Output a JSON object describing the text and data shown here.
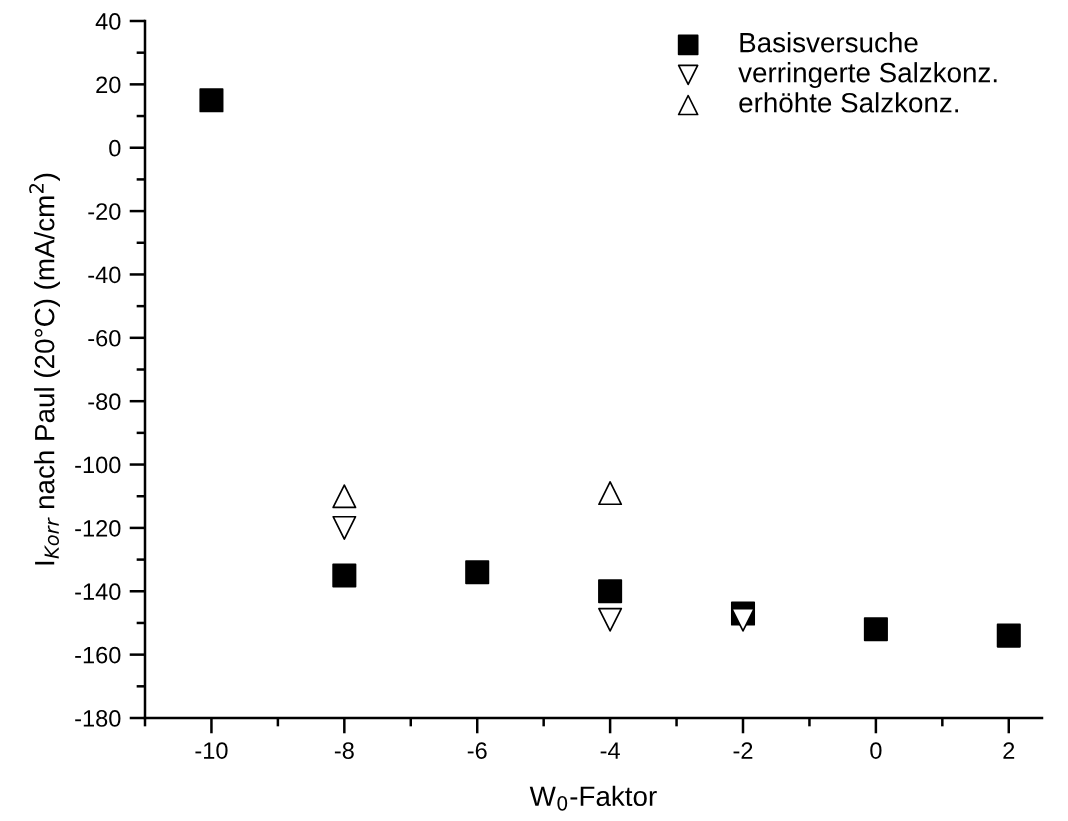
{
  "chart_data": {
    "type": "scatter",
    "xlabel": "W$_{0}$-Faktor",
    "ylabel": "I$_{Korr}$ nach Paul (20°C) (mA/cm$^{2}$)",
    "xlim": [
      -11,
      2.5
    ],
    "xticks": [
      -10,
      -8,
      -6,
      -4,
      -2,
      0,
      2
    ],
    "ylim": [
      -180,
      40
    ],
    "yticks": [
      -180,
      -160,
      -140,
      -120,
      -100,
      -80,
      -60,
      -40,
      -20,
      0,
      20,
      40
    ],
    "grid": false,
    "legend": "top right",
    "series": [
      {
        "name": "Basisversuche",
        "color": "#000000",
        "marker": "square",
        "x": [
          -10,
          -8,
          -6,
          -4,
          -2,
          0,
          2
        ],
        "values": [
          15,
          -135,
          -134,
          -140,
          -147,
          -152,
          -154
        ]
      },
      {
        "name": "verringerte Salzkonz.",
        "color": "#ffffff",
        "marker": "triangle_down",
        "x": [
          -8,
          -4,
          -2
        ],
        "values": [
          -120,
          -149,
          -149
        ]
      },
      {
        "name": "erhöhte Salzkonz.",
        "color": "#ffffff",
        "marker": "triangle",
        "x": [
          -8,
          -4
        ],
        "values": [
          -110,
          -109
        ]
      }
    ]
  }
}
